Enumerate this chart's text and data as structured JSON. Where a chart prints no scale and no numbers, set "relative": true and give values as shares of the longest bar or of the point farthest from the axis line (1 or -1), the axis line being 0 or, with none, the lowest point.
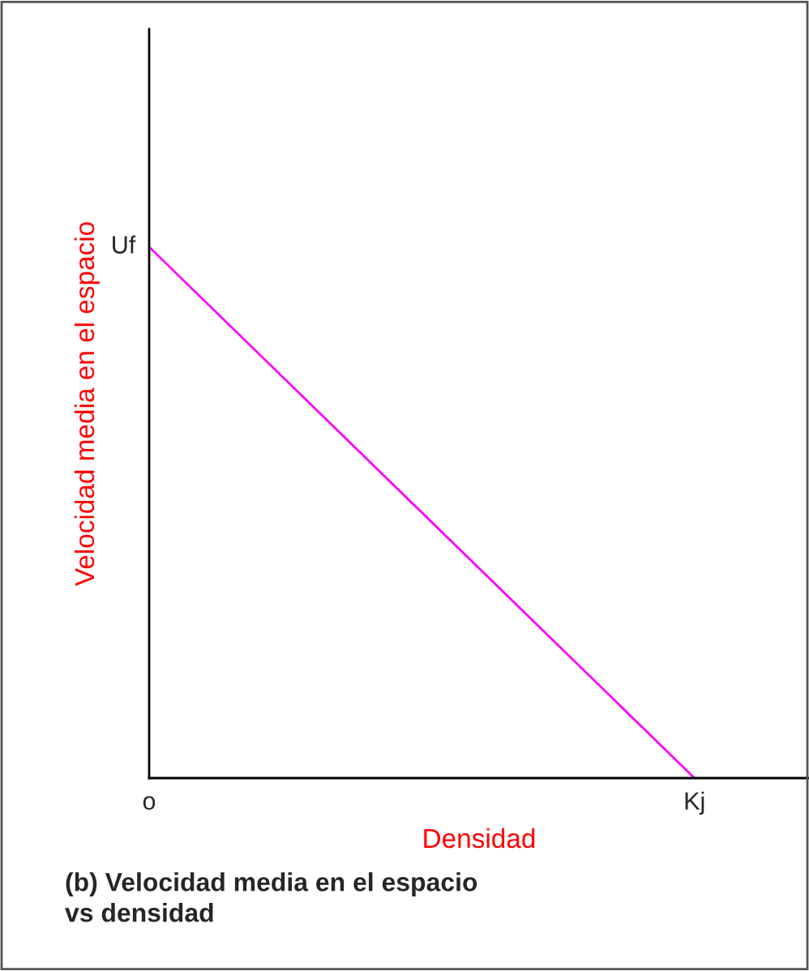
{
  "chart_data": {
    "type": "line",
    "relative": true,
    "title": "(b) Velocidad media en el espacio\nvs densidad",
    "xlabel": "Densidad",
    "ylabel": "Velocidad media en el espacio",
    "categories": [
      "o",
      "Kj"
    ],
    "series": [
      {
        "color": "#ff00ff",
        "values": [
          1,
          0
        ]
      }
    ],
    "annotations": [
      {
        "text": "Uf",
        "x": "o",
        "y": 1
      }
    ],
    "grid": false,
    "legend": false
  }
}
